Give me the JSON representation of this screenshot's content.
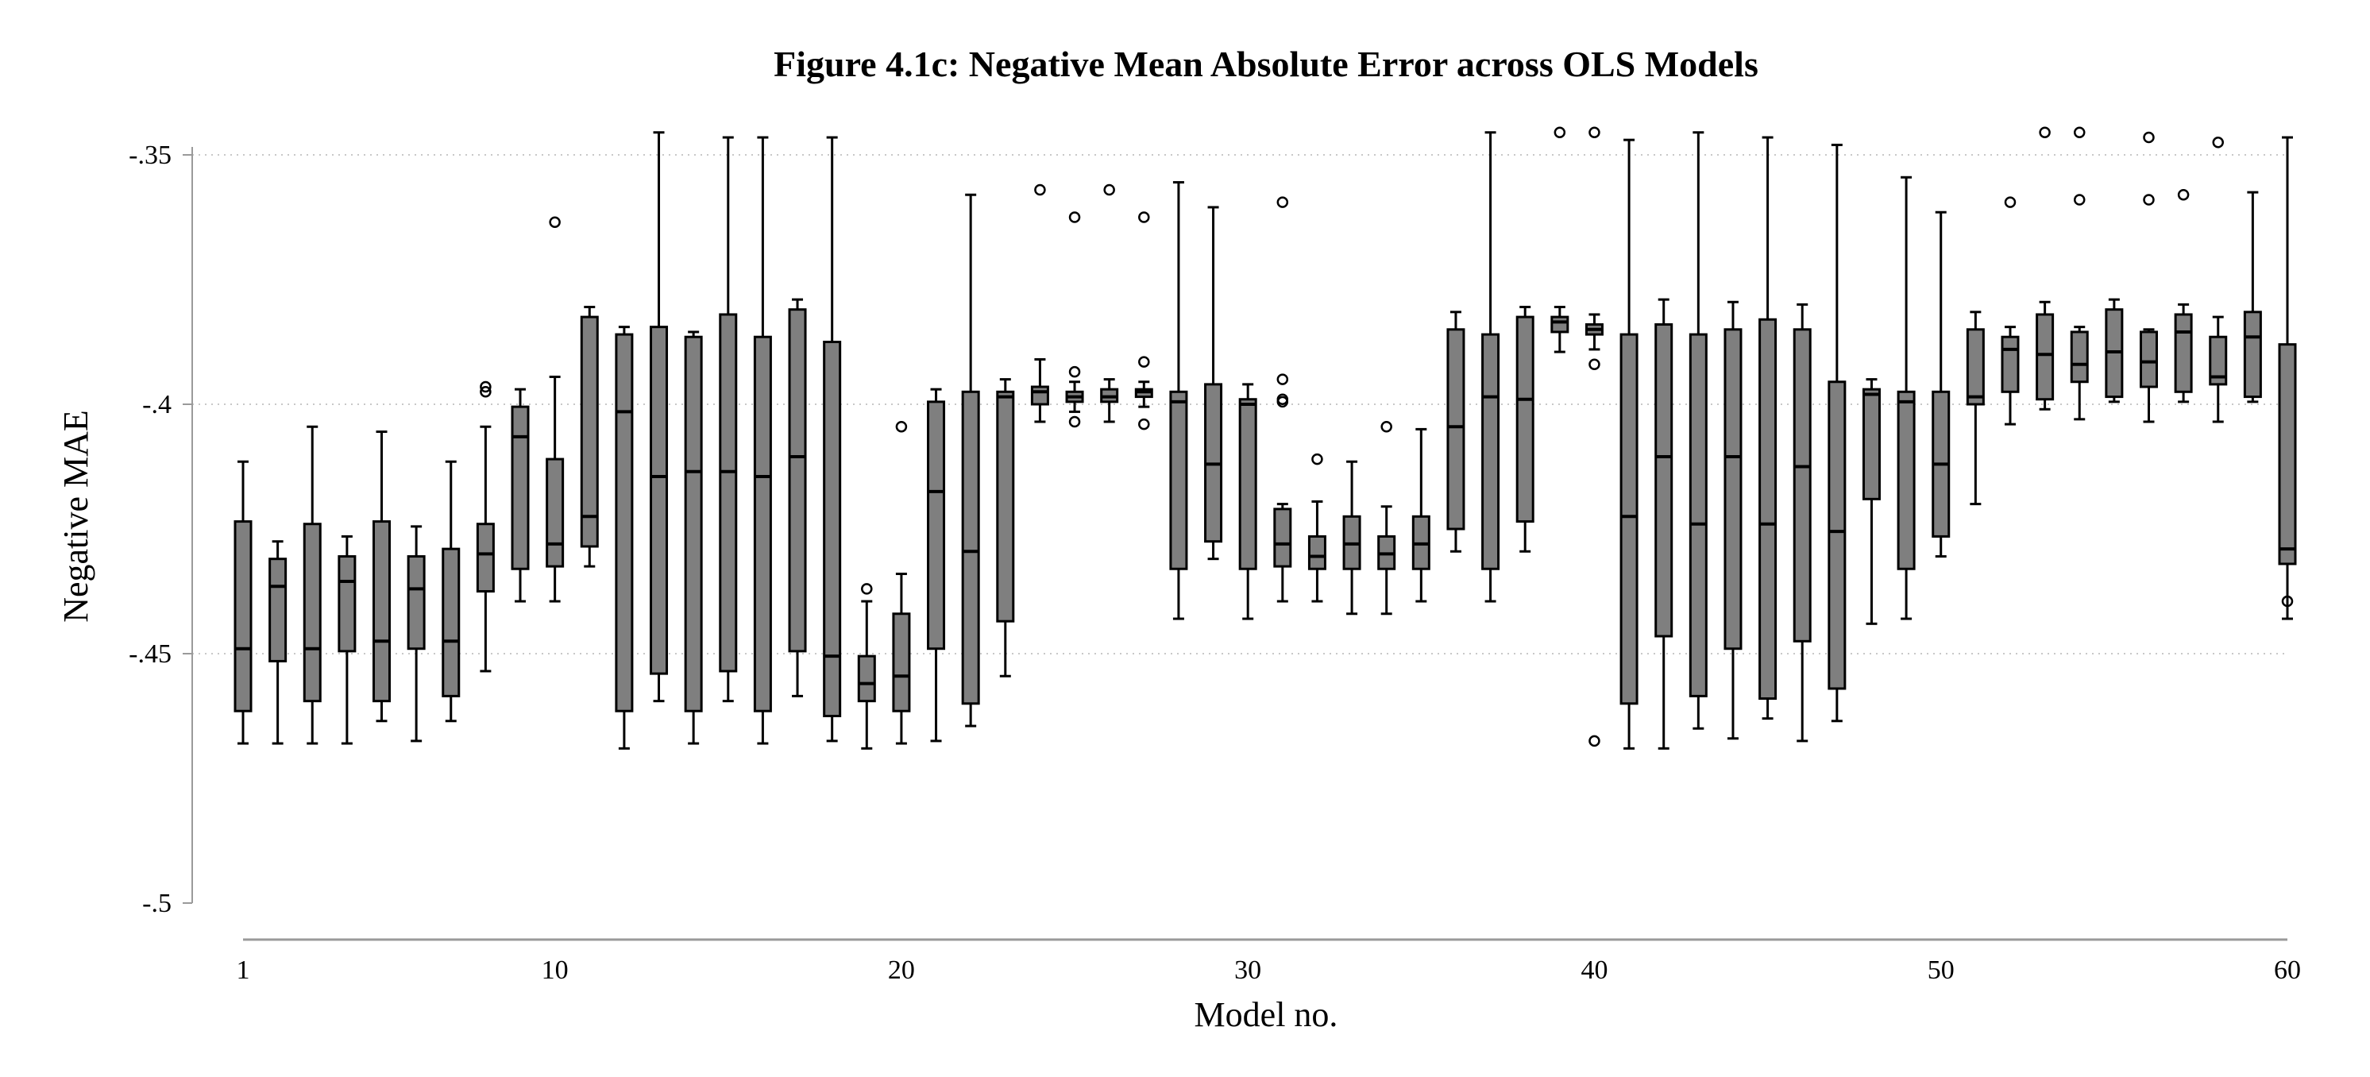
{
  "colors": {
    "box_fill": "#7f7f7f",
    "stroke": "#000000",
    "grid": "#c8c8c8",
    "axis": "#9a9a9a",
    "background": "#ffffff"
  },
  "chart_data": {
    "type": "boxplot",
    "title": "Figure 4.1c: Negative Mean Absolute Error across OLS Models",
    "xlabel": "Model no.",
    "ylabel": "Negative MAE",
    "xlim": [
      1,
      60
    ],
    "ylim": [
      -0.5,
      -0.35
    ],
    "xticks": [
      1,
      10,
      20,
      30,
      40,
      50,
      60
    ],
    "xtick_labels": [
      "1",
      "10",
      "20",
      "30",
      "40",
      "50",
      "60"
    ],
    "yticks": [
      -0.35,
      -0.4,
      -0.45,
      -0.5
    ],
    "ytick_labels": [
      "-.35",
      "-.4",
      "-.45",
      "-.5"
    ],
    "grid": "horizontal dotted",
    "boxes": [
      {
        "model": 1,
        "whislo": -0.468,
        "q1": -0.4615,
        "med": -0.449,
        "q3": -0.4235,
        "whishi": -0.4115,
        "fliers": []
      },
      {
        "model": 2,
        "whislo": -0.468,
        "q1": -0.4515,
        "med": -0.4365,
        "q3": -0.431,
        "whishi": -0.4275,
        "fliers": []
      },
      {
        "model": 3,
        "whislo": -0.468,
        "q1": -0.4595,
        "med": -0.449,
        "q3": -0.424,
        "whishi": -0.4045,
        "fliers": []
      },
      {
        "model": 4,
        "whislo": -0.468,
        "q1": -0.4495,
        "med": -0.4355,
        "q3": -0.4305,
        "whishi": -0.4265,
        "fliers": []
      },
      {
        "model": 5,
        "whislo": -0.4635,
        "q1": -0.4595,
        "med": -0.4475,
        "q3": -0.4235,
        "whishi": -0.4055,
        "fliers": []
      },
      {
        "model": 6,
        "whislo": -0.4675,
        "q1": -0.449,
        "med": -0.437,
        "q3": -0.4305,
        "whishi": -0.4245,
        "fliers": []
      },
      {
        "model": 7,
        "whislo": -0.4635,
        "q1": -0.4585,
        "med": -0.4475,
        "q3": -0.429,
        "whishi": -0.4115,
        "fliers": []
      },
      {
        "model": 8,
        "whislo": -0.4535,
        "q1": -0.4375,
        "med": -0.43,
        "q3": -0.424,
        "whishi": -0.4045,
        "fliers": [
          -0.3975,
          -0.3965
        ]
      },
      {
        "model": 9,
        "whislo": -0.4395,
        "q1": -0.433,
        "med": -0.4065,
        "q3": -0.4005,
        "whishi": -0.397,
        "fliers": []
      },
      {
        "model": 10,
        "whislo": -0.4395,
        "q1": -0.4325,
        "med": -0.428,
        "q3": -0.411,
        "whishi": -0.3945,
        "fliers": [
          -0.3635
        ]
      },
      {
        "model": 11,
        "whislo": -0.4325,
        "q1": -0.4285,
        "med": -0.4225,
        "q3": -0.3825,
        "whishi": -0.3805,
        "fliers": []
      },
      {
        "model": 12,
        "whislo": -0.469,
        "q1": -0.4615,
        "med": -0.4015,
        "q3": -0.386,
        "whishi": -0.3845,
        "fliers": []
      },
      {
        "model": 13,
        "whislo": -0.4595,
        "q1": -0.454,
        "med": -0.4145,
        "q3": -0.3845,
        "whishi": -0.3455,
        "fliers": []
      },
      {
        "model": 14,
        "whislo": -0.468,
        "q1": -0.4615,
        "med": -0.4135,
        "q3": -0.3865,
        "whishi": -0.3855,
        "fliers": []
      },
      {
        "model": 15,
        "whislo": -0.4595,
        "q1": -0.4535,
        "med": -0.4135,
        "q3": -0.382,
        "whishi": -0.3465,
        "fliers": []
      },
      {
        "model": 16,
        "whislo": -0.468,
        "q1": -0.4615,
        "med": -0.4145,
        "q3": -0.3865,
        "whishi": -0.3465,
        "fliers": []
      },
      {
        "model": 17,
        "whislo": -0.4585,
        "q1": -0.4495,
        "med": -0.4105,
        "q3": -0.381,
        "whishi": -0.379,
        "fliers": []
      },
      {
        "model": 18,
        "whislo": -0.4675,
        "q1": -0.4625,
        "med": -0.4505,
        "q3": -0.3875,
        "whishi": -0.3465,
        "fliers": []
      },
      {
        "model": 19,
        "whislo": -0.469,
        "q1": -0.4595,
        "med": -0.456,
        "q3": -0.4505,
        "whishi": -0.4395,
        "fliers": [
          -0.437
        ]
      },
      {
        "model": 20,
        "whislo": -0.468,
        "q1": -0.4615,
        "med": -0.4545,
        "q3": -0.442,
        "whishi": -0.434,
        "fliers": [
          -0.4045
        ]
      },
      {
        "model": 21,
        "whislo": -0.4675,
        "q1": -0.449,
        "med": -0.4175,
        "q3": -0.3995,
        "whishi": -0.397,
        "fliers": []
      },
      {
        "model": 22,
        "whislo": -0.4645,
        "q1": -0.46,
        "med": -0.4295,
        "q3": -0.3975,
        "whishi": -0.358,
        "fliers": []
      },
      {
        "model": 23,
        "whislo": -0.4545,
        "q1": -0.4435,
        "med": -0.3985,
        "q3": -0.3975,
        "whishi": -0.395,
        "fliers": []
      },
      {
        "model": 24,
        "whislo": -0.4035,
        "q1": -0.4,
        "med": -0.3975,
        "q3": -0.3965,
        "whishi": -0.391,
        "fliers": [
          -0.357
        ]
      },
      {
        "model": 25,
        "whislo": -0.4015,
        "q1": -0.3995,
        "med": -0.3985,
        "q3": -0.3975,
        "whishi": -0.3955,
        "fliers": [
          -0.3935,
          -0.4035,
          -0.3625
        ]
      },
      {
        "model": 26,
        "whislo": -0.4035,
        "q1": -0.3995,
        "med": -0.3985,
        "q3": -0.397,
        "whishi": -0.395,
        "fliers": [
          -0.357
        ]
      },
      {
        "model": 27,
        "whislo": -0.4005,
        "q1": -0.3985,
        "med": -0.3975,
        "q3": -0.397,
        "whishi": -0.3955,
        "fliers": [
          -0.3625,
          -0.3915,
          -0.404
        ]
      },
      {
        "model": 28,
        "whislo": -0.443,
        "q1": -0.433,
        "med": -0.3995,
        "q3": -0.3975,
        "whishi": -0.3555,
        "fliers": []
      },
      {
        "model": 29,
        "whislo": -0.431,
        "q1": -0.4275,
        "med": -0.412,
        "q3": -0.396,
        "whishi": -0.3605,
        "fliers": []
      },
      {
        "model": 30,
        "whislo": -0.443,
        "q1": -0.433,
        "med": -0.4,
        "q3": -0.399,
        "whishi": -0.396,
        "fliers": []
      },
      {
        "model": 31,
        "whislo": -0.4395,
        "q1": -0.4325,
        "med": -0.428,
        "q3": -0.421,
        "whishi": -0.42,
        "fliers": [
          -0.3595,
          -0.395,
          -0.399,
          -0.3995
        ]
      },
      {
        "model": 32,
        "whislo": -0.4395,
        "q1": -0.433,
        "med": -0.4305,
        "q3": -0.4265,
        "whishi": -0.4195,
        "fliers": [
          -0.411
        ]
      },
      {
        "model": 33,
        "whislo": -0.442,
        "q1": -0.433,
        "med": -0.428,
        "q3": -0.4225,
        "whishi": -0.4115,
        "fliers": []
      },
      {
        "model": 34,
        "whislo": -0.442,
        "q1": -0.433,
        "med": -0.43,
        "q3": -0.4265,
        "whishi": -0.4205,
        "fliers": [
          -0.4045
        ]
      },
      {
        "model": 35,
        "whislo": -0.4395,
        "q1": -0.433,
        "med": -0.428,
        "q3": -0.4225,
        "whishi": -0.405,
        "fliers": []
      },
      {
        "model": 36,
        "whislo": -0.4295,
        "q1": -0.425,
        "med": -0.4045,
        "q3": -0.385,
        "whishi": -0.3815,
        "fliers": []
      },
      {
        "model": 37,
        "whislo": -0.4395,
        "q1": -0.433,
        "med": -0.3985,
        "q3": -0.386,
        "whishi": -0.3455,
        "fliers": []
      },
      {
        "model": 38,
        "whislo": -0.4295,
        "q1": -0.4235,
        "med": -0.399,
        "q3": -0.3825,
        "whishi": -0.3805,
        "fliers": []
      },
      {
        "model": 39,
        "whislo": -0.3895,
        "q1": -0.3855,
        "med": -0.3835,
        "q3": -0.3825,
        "whishi": -0.3805,
        "fliers": [
          -0.3455
        ]
      },
      {
        "model": 40,
        "whislo": -0.389,
        "q1": -0.386,
        "med": -0.385,
        "q3": -0.384,
        "whishi": -0.382,
        "fliers": [
          -0.3455,
          -0.392,
          -0.4675
        ]
      },
      {
        "model": 41,
        "whislo": -0.469,
        "q1": -0.46,
        "med": -0.4225,
        "q3": -0.386,
        "whishi": -0.347,
        "fliers": []
      },
      {
        "model": 42,
        "whislo": -0.469,
        "q1": -0.4465,
        "med": -0.4105,
        "q3": -0.384,
        "whishi": -0.379,
        "fliers": []
      },
      {
        "model": 43,
        "whislo": -0.465,
        "q1": -0.4585,
        "med": -0.424,
        "q3": -0.386,
        "whishi": -0.3455,
        "fliers": []
      },
      {
        "model": 44,
        "whislo": -0.467,
        "q1": -0.449,
        "med": -0.4105,
        "q3": -0.385,
        "whishi": -0.3795,
        "fliers": []
      },
      {
        "model": 45,
        "whislo": -0.463,
        "q1": -0.459,
        "med": -0.424,
        "q3": -0.383,
        "whishi": -0.3465,
        "fliers": []
      },
      {
        "model": 46,
        "whislo": -0.4675,
        "q1": -0.4475,
        "med": -0.4125,
        "q3": -0.385,
        "whishi": -0.38,
        "fliers": []
      },
      {
        "model": 47,
        "whislo": -0.4635,
        "q1": -0.457,
        "med": -0.4255,
        "q3": -0.3955,
        "whishi": -0.348,
        "fliers": []
      },
      {
        "model": 48,
        "whislo": -0.444,
        "q1": -0.419,
        "med": -0.398,
        "q3": -0.397,
        "whishi": -0.395,
        "fliers": []
      },
      {
        "model": 49,
        "whislo": -0.443,
        "q1": -0.433,
        "med": -0.3995,
        "q3": -0.3975,
        "whishi": -0.3545,
        "fliers": []
      },
      {
        "model": 50,
        "whislo": -0.4305,
        "q1": -0.4265,
        "med": -0.412,
        "q3": -0.3975,
        "whishi": -0.3615,
        "fliers": []
      },
      {
        "model": 51,
        "whislo": -0.42,
        "q1": -0.4,
        "med": -0.3985,
        "q3": -0.385,
        "whishi": -0.3815,
        "fliers": []
      },
      {
        "model": 52,
        "whislo": -0.404,
        "q1": -0.3975,
        "med": -0.389,
        "q3": -0.3865,
        "whishi": -0.3845,
        "fliers": [
          -0.3595
        ]
      },
      {
        "model": 53,
        "whislo": -0.401,
        "q1": -0.399,
        "med": -0.39,
        "q3": -0.382,
        "whishi": -0.3795,
        "fliers": [
          -0.3455
        ]
      },
      {
        "model": 54,
        "whislo": -0.403,
        "q1": -0.3955,
        "med": -0.392,
        "q3": -0.3855,
        "whishi": -0.3845,
        "fliers": [
          -0.3455,
          -0.359
        ]
      },
      {
        "model": 55,
        "whislo": -0.3995,
        "q1": -0.3985,
        "med": -0.3895,
        "q3": -0.381,
        "whishi": -0.379,
        "fliers": []
      },
      {
        "model": 56,
        "whislo": -0.4035,
        "q1": -0.3965,
        "med": -0.3915,
        "q3": -0.3855,
        "whishi": -0.385,
        "fliers": [
          -0.3465,
          -0.359
        ]
      },
      {
        "model": 57,
        "whislo": -0.3995,
        "q1": -0.3975,
        "med": -0.3855,
        "q3": -0.382,
        "whishi": -0.38,
        "fliers": [
          -0.358
        ]
      },
      {
        "model": 58,
        "whislo": -0.4035,
        "q1": -0.396,
        "med": -0.3945,
        "q3": -0.3865,
        "whishi": -0.3825,
        "fliers": [
          -0.3475
        ]
      },
      {
        "model": 59,
        "whislo": -0.3995,
        "q1": -0.3985,
        "med": -0.3865,
        "q3": -0.3815,
        "whishi": -0.3575,
        "fliers": []
      },
      {
        "model": 60,
        "whislo": -0.443,
        "q1": -0.432,
        "med": -0.429,
        "q3": -0.388,
        "whishi": -0.3465,
        "fliers": [
          -0.4395
        ]
      }
    ]
  }
}
